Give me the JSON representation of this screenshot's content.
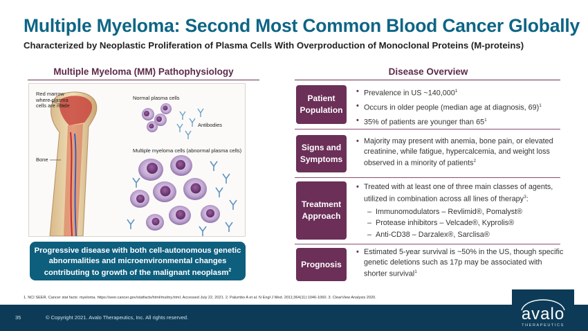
{
  "slide": {
    "title": "Multiple Myeloma: Second Most Common Blood Cancer Globally",
    "subtitle": "Characterized by Neoplastic Proliferation of Plasma Cells With Overproduction of Monoclonal Proteins (M-proteins)"
  },
  "left_panel": {
    "header": "Multiple Myeloma (MM) Pathophysiology",
    "labels": {
      "red_marrow_1": "Red marrow",
      "red_marrow_2": "where plasma",
      "red_marrow_3": "cells are made",
      "bone": "Bone",
      "normal_cells": "Normal plasma cells",
      "antibodies": "Antibodies",
      "myeloma_cells": "Multiple myeloma cells (abnormal plasma cells)"
    },
    "callout": {
      "line1": "Progressive disease with both cell-autonomous genetic",
      "line2": "abnormalities and microenvironmental changes",
      "line3": "contributing to growth of the malignant neoplasm",
      "ref": "2"
    }
  },
  "right_panel": {
    "header": "Disease Overview",
    "rows": [
      {
        "tag_line1": "Patient",
        "tag_line2": "Population",
        "bullets": [
          {
            "text": "Prevalence in US ~140,000",
            "ref": "1"
          },
          {
            "text": "Occurs in older people (median age at diagnosis, 69)",
            "ref": "1"
          },
          {
            "text": "35% of patients are younger than 65",
            "ref": "1"
          }
        ]
      },
      {
        "tag_line1": "Signs and",
        "tag_line2": "Symptoms",
        "bullets": [
          {
            "text": "Majority may present with anemia, bone pain, or elevated creatinine, while fatigue, hypercalcemia, and weight loss observed in a minority of patients",
            "ref": "2"
          }
        ]
      },
      {
        "tag_line1": "Treatment",
        "tag_line2": "Approach",
        "bullets": [
          {
            "text": "Treated with at least one of three main classes of agents, utilized in combination across all lines of therapy",
            "ref": "3",
            "suffix": ":"
          }
        ],
        "sub_bullets": [
          "Immunomodulators – Revlimid®, Pomalyst®",
          "Protease inhibitors – Velcade®, Kyprolis®",
          "Anti-CD38 – Darzalex®, Sarclisa®"
        ]
      },
      {
        "tag_line1": "Prognosis",
        "bullets": [
          {
            "text": "Estimated 5-year survival is ~50% in the US, though specific genetic deletions such as 17p may be associated with shorter survival",
            "ref": "1"
          }
        ]
      }
    ]
  },
  "footnote": "1. NCI SEER. Cancer stat facts: myeloma. https://seer.cancer.gov/statfacts/html/mulmy.html. Accessed July 22, 2021. 2. Palumbo A et al. N Engl J Med. 2011;364(11):1046-1060. 3. ClearView Analysis 2020.",
  "footer": {
    "page_number": "35",
    "copyright": "© Copyright 2021. Avalo Therapeutics, Inc. All rights reserved.",
    "logo_word": "avalo",
    "logo_sub": "THERAPEUTICS"
  },
  "colors": {
    "title_blue": "#0e6585",
    "tag_purple": "#6b2f58",
    "callout_teal": "#0e5f7e",
    "footer_navy": "#0d3b57"
  }
}
